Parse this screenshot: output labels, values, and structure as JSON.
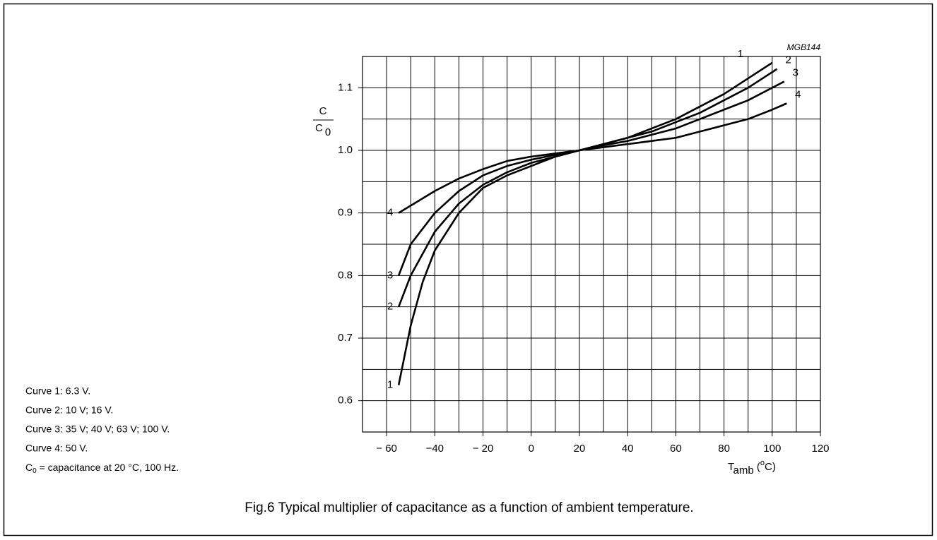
{
  "chart_data": {
    "type": "line",
    "code": "MGB144",
    "caption": "Fig.6  Typical multiplier of capacitance as a function of ambient temperature.",
    "ylabel": {
      "numerator": "C",
      "denominator": "C",
      "denominator_sub": "0"
    },
    "xlabel": {
      "main": "T",
      "sub": "amb",
      "pre": " (",
      "sup": "o",
      "post": "C)"
    },
    "notes": [
      "Curve 1: 6.3 V.",
      "Curve 2: 10 V; 16 V.",
      "Curve 3: 35 V; 40 V; 63 V; 100 V.",
      "Curve 4: 50 V."
    ],
    "note_c0": {
      "main": "C",
      "sub": "0",
      "rest": " = capacitance at 20 °C, 100 Hz."
    },
    "xlim": [
      -70,
      120
    ],
    "ylim": [
      0.55,
      1.15
    ],
    "xticks": [
      {
        "value": -60,
        "label": "− 60"
      },
      {
        "value": -40,
        "label": "−40"
      },
      {
        "value": -20,
        "label": "− 20"
      },
      0,
      20,
      40,
      60,
      80,
      100,
      120
    ],
    "yticks": [
      0.6,
      0.7,
      0.8,
      0.9,
      {
        "value": 1,
        "label": "1.0"
      },
      1.1
    ],
    "xgrid": [
      -60,
      -50,
      -40,
      -30,
      -20,
      -10,
      0,
      10,
      20,
      30,
      40,
      50,
      60,
      70,
      80,
      90,
      100,
      110
    ],
    "ygrid": [
      0.6,
      0.65,
      0.7,
      0.75,
      0.8,
      0.85,
      0.9,
      0.95,
      1,
      1.05,
      1.1
    ],
    "series": [
      {
        "name": "1",
        "color": "#000000",
        "x": [
          -55,
          -50,
          -45,
          -40,
          -30,
          -20,
          -10,
          0,
          10,
          20,
          30,
          40,
          50,
          60,
          70,
          80,
          90,
          100
        ],
        "values": [
          0.625,
          0.72,
          0.79,
          0.84,
          0.9,
          0.94,
          0.96,
          0.975,
          0.99,
          1.0,
          1.01,
          1.02,
          1.035,
          1.05,
          1.07,
          1.09,
          1.115,
          1.14
        ]
      },
      {
        "name": "2",
        "color": "#000000",
        "x": [
          -55,
          -50,
          -40,
          -30,
          -20,
          -10,
          0,
          10,
          20,
          30,
          40,
          50,
          60,
          70,
          80,
          90,
          100,
          102
        ],
        "values": [
          0.75,
          0.8,
          0.87,
          0.915,
          0.945,
          0.965,
          0.98,
          0.99,
          1.0,
          1.01,
          1.02,
          1.03,
          1.045,
          1.06,
          1.08,
          1.1,
          1.125,
          1.13
        ]
      },
      {
        "name": "3",
        "color": "#000000",
        "x": [
          -55,
          -50,
          -40,
          -30,
          -20,
          -10,
          0,
          10,
          20,
          30,
          40,
          50,
          60,
          70,
          80,
          90,
          100,
          105
        ],
        "values": [
          0.8,
          0.85,
          0.9,
          0.935,
          0.96,
          0.975,
          0.985,
          0.993,
          1.0,
          1.008,
          1.015,
          1.025,
          1.035,
          1.05,
          1.065,
          1.08,
          1.1,
          1.11
        ]
      },
      {
        "name": "4",
        "color": "#000000",
        "x": [
          -55,
          -40,
          -30,
          -20,
          -10,
          0,
          10,
          20,
          30,
          40,
          50,
          60,
          70,
          80,
          90,
          100,
          106
        ],
        "values": [
          0.9,
          0.935,
          0.955,
          0.97,
          0.983,
          0.99,
          0.995,
          1.0,
          1.005,
          1.01,
          1.015,
          1.02,
          1.03,
          1.04,
          1.05,
          1.065,
          1.075
        ]
      }
    ]
  }
}
